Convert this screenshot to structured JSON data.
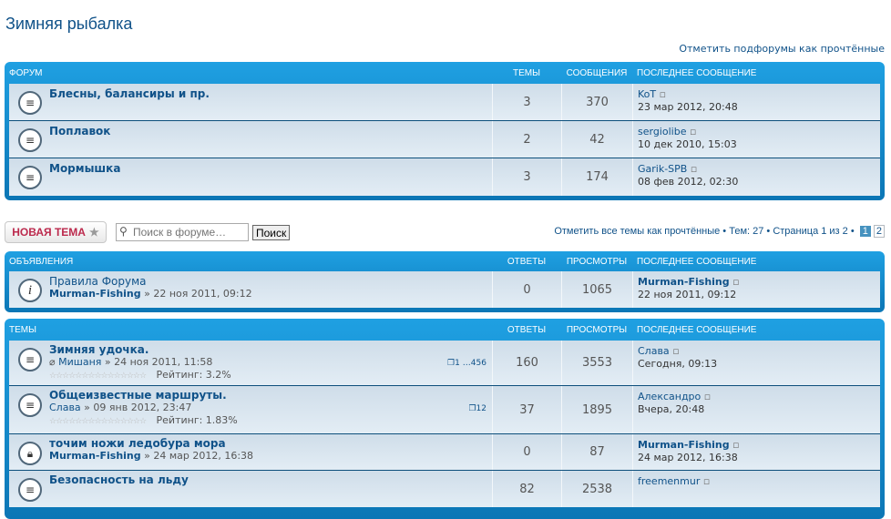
{
  "page_title": "Зимняя рыбалка",
  "mark_subforums": "Отметить подфорумы как прочтённые",
  "forums": {
    "headers": {
      "forum": "Форум",
      "topics": "Темы",
      "posts": "Сообщения",
      "last": "Последнее сообщение"
    },
    "rows": [
      {
        "title": "Блесны, балансиры и пр.",
        "topics": "3",
        "posts": "370",
        "last_author": "KoT",
        "last_date": "23 мар 2012, 20:48"
      },
      {
        "title": "Поплавок",
        "topics": "2",
        "posts": "42",
        "last_author": "sergiolibe",
        "last_date": "10 дек 2010, 15:03"
      },
      {
        "title": "Мормышка",
        "topics": "3",
        "posts": "174",
        "last_author": "Garik-SPB",
        "last_date": "08 фев 2012, 02:30"
      }
    ]
  },
  "toolbar": {
    "new_topic": "Новая тема",
    "search_placeholder": "Поиск в форуме…",
    "search_button": "Поиск",
    "mark_topics": "Отметить все темы как прочтённые",
    "sep": " • ",
    "topic_count": "Тем: 27",
    "page_info": "Страница 1 из 2",
    "pages": [
      "1",
      "2"
    ],
    "current_page": "1"
  },
  "announcements": {
    "headers": {
      "title": "Объявления",
      "replies": "Ответы",
      "views": "Просмотры",
      "last": "Последнее сообщение"
    },
    "rows": [
      {
        "title": "Правила Форума",
        "author": "Murman-Fishing",
        "date": " » 22 ноя 2011, 09:12",
        "replies": "0",
        "views": "1065",
        "last_author": "Murman-Fishing",
        "last_date": "22 ноя 2011, 09:12"
      }
    ]
  },
  "topics": {
    "headers": {
      "title": "Темы",
      "replies": "Ответы",
      "views": "Просмотры",
      "last": "Последнее сообщение"
    },
    "rows": [
      {
        "title": "Зимняя удочка.",
        "author": "Мишаня",
        "date": " » 24 ноя 2011, 11:58",
        "rating": "Рейтинг: 3.2%",
        "pages": [
          "1",
          "…",
          "4",
          "5",
          "6"
        ],
        "replies": "160",
        "views": "3553",
        "last_author": "Слава",
        "last_date": "Сегодня, 09:13"
      },
      {
        "title": "Общеизвестные маршруты.",
        "author": "Слава",
        "date": " » 09 янв 2012, 23:47",
        "rating": "Рейтинг: 1.83%",
        "pages": [
          "1",
          "2"
        ],
        "replies": "37",
        "views": "1895",
        "last_author": "Александро",
        "last_date": "Вчера, 20:48"
      },
      {
        "title": "точим ножи ледобура мора",
        "author": "Murman-Fishing",
        "date": " » 24 мар 2012, 16:38",
        "replies": "0",
        "views": "87",
        "last_author": "Murman-Fishing",
        "last_date": "24 мар 2012, 16:38"
      },
      {
        "title": "Безопасность на льду",
        "replies": "82",
        "views": "2538",
        "last_author": "freemenmur"
      }
    ]
  },
  "colors": {
    "header_blue": "#1fa0e2",
    "link": "#105289",
    "new_topic": "#bc2a4d"
  }
}
